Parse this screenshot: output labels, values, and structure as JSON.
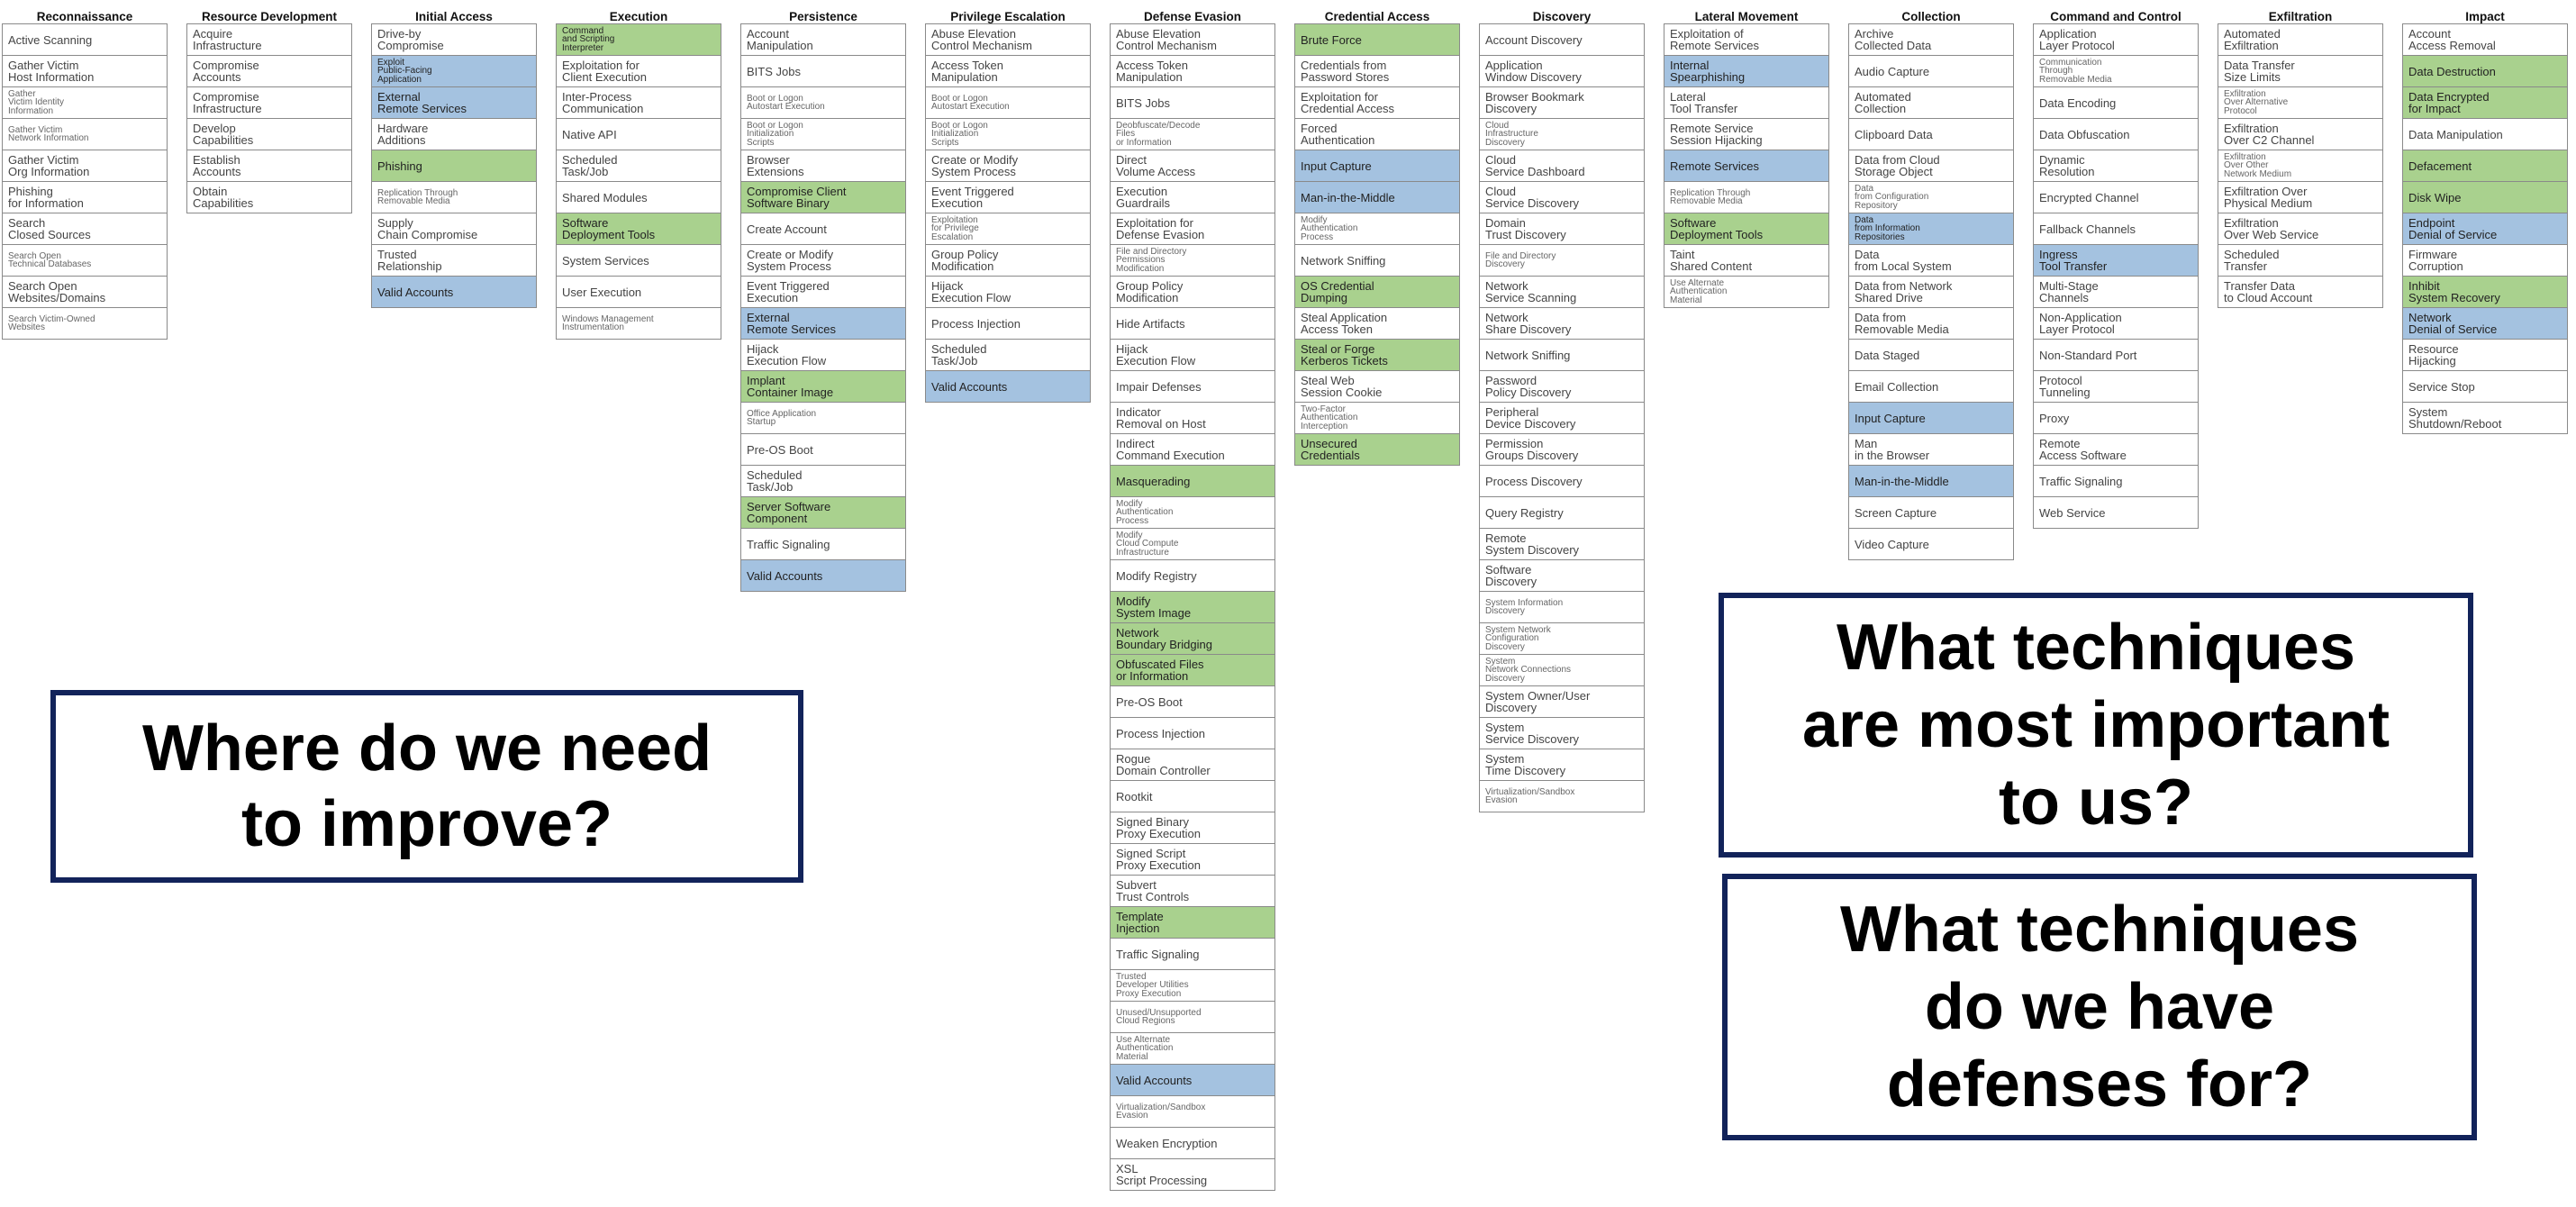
{
  "colors": {
    "green": "#a9d18e",
    "blue": "#a4c2e0",
    "callout_border": "#12235a"
  },
  "legend": {
    "improve": "Where do we need\nto improve?",
    "important": "What techniques\nare most important\nto us?",
    "defenses": "What techniques\ndo we have\ndefenses for?"
  },
  "tactics": [
    {
      "name": "Reconnaissance",
      "techniques": [
        {
          "label": "Active Scanning"
        },
        {
          "label": "Gather Victim\nHost Information"
        },
        {
          "label": "Gather\nVictim Identity\nInformation",
          "small": true
        },
        {
          "label": "Gather Victim\nNetwork Information",
          "small": true
        },
        {
          "label": "Gather Victim\nOrg Information"
        },
        {
          "label": "Phishing\nfor Information"
        },
        {
          "label": "Search\nClosed Sources"
        },
        {
          "label": "Search Open\nTechnical Databases",
          "small": true
        },
        {
          "label": "Search Open\nWebsites/Domains"
        },
        {
          "label": "Search Victim-Owned\nWebsites",
          "small": true
        }
      ]
    },
    {
      "name": "Resource\nDevelopment",
      "techniques": [
        {
          "label": "Acquire\nInfrastructure"
        },
        {
          "label": "Compromise\nAccounts"
        },
        {
          "label": "Compromise\nInfrastructure"
        },
        {
          "label": "Develop\nCapabilities"
        },
        {
          "label": "Establish\nAccounts"
        },
        {
          "label": "Obtain\nCapabilities"
        }
      ]
    },
    {
      "name": "Initial Access",
      "techniques": [
        {
          "label": "Drive-by\nCompromise"
        },
        {
          "label": "Exploit\nPublic-Facing\nApplication",
          "color": "blue",
          "small": true
        },
        {
          "label": "External\nRemote Services",
          "color": "blue"
        },
        {
          "label": "Hardware\nAdditions"
        },
        {
          "label": "Phishing",
          "color": "green"
        },
        {
          "label": "Replication Through\nRemovable Media",
          "small": true
        },
        {
          "label": "Supply\nChain Compromise"
        },
        {
          "label": "Trusted\nRelationship"
        },
        {
          "label": "Valid Accounts",
          "color": "blue"
        }
      ]
    },
    {
      "name": "Execution",
      "techniques": [
        {
          "label": "Command\nand Scripting\nInterpreter",
          "color": "green",
          "small": true
        },
        {
          "label": "Exploitation for\nClient Execution"
        },
        {
          "label": "Inter-Process\nCommunication"
        },
        {
          "label": "Native API"
        },
        {
          "label": "Scheduled\nTask/Job"
        },
        {
          "label": "Shared Modules"
        },
        {
          "label": "Software\nDeployment Tools",
          "color": "green"
        },
        {
          "label": "System Services"
        },
        {
          "label": "User Execution"
        },
        {
          "label": "Windows Management\nInstrumentation",
          "small": true
        }
      ]
    },
    {
      "name": "Persistence",
      "techniques": [
        {
          "label": "Account\nManipulation"
        },
        {
          "label": "BITS Jobs"
        },
        {
          "label": "Boot or Logon\nAutostart Execution",
          "small": true
        },
        {
          "label": "Boot or Logon\nInitialization\nScripts",
          "small": true
        },
        {
          "label": "Browser\nExtensions"
        },
        {
          "label": "Compromise Client\nSoftware Binary",
          "color": "green"
        },
        {
          "label": "Create Account"
        },
        {
          "label": "Create or Modify\nSystem Process"
        },
        {
          "label": "Event Triggered\nExecution"
        },
        {
          "label": "External\nRemote Services",
          "color": "blue"
        },
        {
          "label": "Hijack\nExecution Flow"
        },
        {
          "label": "Implant\nContainer Image",
          "color": "green"
        },
        {
          "label": "Office Application\nStartup",
          "small": true
        },
        {
          "label": "Pre-OS Boot"
        },
        {
          "label": "Scheduled\nTask/Job"
        },
        {
          "label": "Server Software\nComponent",
          "color": "green"
        },
        {
          "label": "Traffic Signaling"
        },
        {
          "label": "Valid Accounts",
          "color": "blue"
        }
      ]
    },
    {
      "name": "Privilege\nEscalation",
      "techniques": [
        {
          "label": "Abuse Elevation\nControl Mechanism"
        },
        {
          "label": "Access Token\nManipulation"
        },
        {
          "label": "Boot or Logon\nAutostart Execution",
          "small": true
        },
        {
          "label": "Boot or Logon\nInitialization\nScripts",
          "small": true
        },
        {
          "label": "Create or Modify\nSystem Process"
        },
        {
          "label": "Event Triggered\nExecution"
        },
        {
          "label": "Exploitation\nfor Privilege\nEscalation",
          "small": true
        },
        {
          "label": "Group Policy\nModification"
        },
        {
          "label": "Hijack\nExecution Flow"
        },
        {
          "label": "Process Injection"
        },
        {
          "label": "Scheduled\nTask/Job"
        },
        {
          "label": "Valid Accounts",
          "color": "blue"
        }
      ]
    },
    {
      "name": "Defense Evasion",
      "techniques": [
        {
          "label": "Abuse Elevation\nControl Mechanism"
        },
        {
          "label": "Access Token\nManipulation"
        },
        {
          "label": "BITS Jobs"
        },
        {
          "label": "Deobfuscate/Decode\nFiles\nor Information",
          "small": true
        },
        {
          "label": "Direct\nVolume Access"
        },
        {
          "label": "Execution\nGuardrails"
        },
        {
          "label": "Exploitation for\nDefense Evasion"
        },
        {
          "label": "File and Directory\nPermissions\nModification",
          "small": true
        },
        {
          "label": "Group Policy\nModification"
        },
        {
          "label": "Hide Artifacts"
        },
        {
          "label": "Hijack\nExecution Flow"
        },
        {
          "label": "Impair Defenses"
        },
        {
          "label": "Indicator\nRemoval on Host"
        },
        {
          "label": "Indirect\nCommand Execution"
        },
        {
          "label": "Masquerading",
          "color": "green"
        },
        {
          "label": "Modify\nAuthentication\nProcess",
          "small": true
        },
        {
          "label": "Modify\nCloud Compute\nInfrastructure",
          "small": true
        },
        {
          "label": "Modify Registry"
        },
        {
          "label": "Modify\nSystem Image",
          "color": "green"
        },
        {
          "label": "Network\nBoundary Bridging",
          "color": "green"
        },
        {
          "label": "Obfuscated Files\nor Information",
          "color": "green"
        },
        {
          "label": "Pre-OS Boot"
        },
        {
          "label": "Process Injection"
        },
        {
          "label": "Rogue\nDomain Controller"
        },
        {
          "label": "Rootkit"
        },
        {
          "label": "Signed Binary\nProxy Execution"
        },
        {
          "label": "Signed Script\nProxy Execution"
        },
        {
          "label": "Subvert\nTrust Controls"
        },
        {
          "label": "Template\nInjection",
          "color": "green"
        },
        {
          "label": "Traffic Signaling"
        },
        {
          "label": "Trusted\nDeveloper Utilities\nProxy Execution",
          "small": true
        },
        {
          "label": "Unused/Unsupported\nCloud Regions",
          "small": true
        },
        {
          "label": "Use Alternate\nAuthentication\nMaterial",
          "small": true
        },
        {
          "label": "Valid Accounts",
          "color": "blue"
        },
        {
          "label": "Virtualization/Sandbox\nEvasion",
          "small": true
        },
        {
          "label": "Weaken Encryption"
        },
        {
          "label": "XSL\nScript Processing"
        }
      ]
    },
    {
      "name": "Credential Access",
      "techniques": [
        {
          "label": "Brute Force",
          "color": "green"
        },
        {
          "label": "Credentials from\nPassword Stores"
        },
        {
          "label": "Exploitation for\nCredential Access"
        },
        {
          "label": "Forced\nAuthentication"
        },
        {
          "label": "Input Capture",
          "color": "blue"
        },
        {
          "label": "Man-in-the-Middle",
          "color": "blue"
        },
        {
          "label": "Modify\nAuthentication\nProcess",
          "small": true
        },
        {
          "label": "Network Sniffing"
        },
        {
          "label": "OS Credential\nDumping",
          "color": "green"
        },
        {
          "label": "Steal Application\nAccess Token"
        },
        {
          "label": "Steal or Forge\nKerberos Tickets",
          "color": "green"
        },
        {
          "label": "Steal Web\nSession Cookie"
        },
        {
          "label": "Two-Factor\nAuthentication\nInterception",
          "small": true
        },
        {
          "label": "Unsecured\nCredentials",
          "color": "green"
        }
      ]
    },
    {
      "name": "Discovery",
      "techniques": [
        {
          "label": "Account Discovery"
        },
        {
          "label": "Application\nWindow Discovery"
        },
        {
          "label": "Browser Bookmark\nDiscovery"
        },
        {
          "label": "Cloud\nInfrastructure\nDiscovery",
          "small": true
        },
        {
          "label": "Cloud\nService Dashboard"
        },
        {
          "label": "Cloud\nService Discovery"
        },
        {
          "label": "Domain\nTrust Discovery"
        },
        {
          "label": "File and Directory\nDiscovery",
          "small": true
        },
        {
          "label": "Network\nService Scanning"
        },
        {
          "label": "Network\nShare Discovery"
        },
        {
          "label": "Network Sniffing"
        },
        {
          "label": "Password\nPolicy Discovery"
        },
        {
          "label": "Peripheral\nDevice Discovery"
        },
        {
          "label": "Permission\nGroups Discovery"
        },
        {
          "label": "Process Discovery"
        },
        {
          "label": "Query Registry"
        },
        {
          "label": "Remote\nSystem Discovery"
        },
        {
          "label": "Software\nDiscovery"
        },
        {
          "label": "System Information\nDiscovery",
          "small": true
        },
        {
          "label": "System Network\nConfiguration\nDiscovery",
          "small": true
        },
        {
          "label": "System\nNetwork Connections\nDiscovery",
          "small": true
        },
        {
          "label": "System Owner/User\nDiscovery"
        },
        {
          "label": "System\nService Discovery"
        },
        {
          "label": "System\nTime Discovery"
        },
        {
          "label": "Virtualization/Sandbox\nEvasion",
          "small": true
        }
      ]
    },
    {
      "name": "Lateral Movement",
      "techniques": [
        {
          "label": "Exploitation of\nRemote Services"
        },
        {
          "label": "Internal\nSpearphishing",
          "color": "blue"
        },
        {
          "label": "Lateral\nTool Transfer"
        },
        {
          "label": "Remote Service\nSession Hijacking"
        },
        {
          "label": "Remote Services",
          "color": "blue"
        },
        {
          "label": "Replication Through\nRemovable Media",
          "small": true
        },
        {
          "label": "Software\nDeployment Tools",
          "color": "green"
        },
        {
          "label": "Taint\nShared Content"
        },
        {
          "label": "Use Alternate\nAuthentication\nMaterial",
          "small": true
        }
      ]
    },
    {
      "name": "Collection",
      "techniques": [
        {
          "label": "Archive\nCollected Data"
        },
        {
          "label": "Audio Capture"
        },
        {
          "label": "Automated\nCollection"
        },
        {
          "label": "Clipboard Data"
        },
        {
          "label": "Data from Cloud\nStorage Object"
        },
        {
          "label": "Data\nfrom Configuration\nRepository",
          "small": true
        },
        {
          "label": "Data\nfrom Information\nRepositories",
          "color": "blue",
          "small": true
        },
        {
          "label": "Data\nfrom Local System"
        },
        {
          "label": "Data from Network\nShared Drive"
        },
        {
          "label": "Data from\nRemovable Media"
        },
        {
          "label": "Data Staged"
        },
        {
          "label": "Email Collection"
        },
        {
          "label": "Input Capture",
          "color": "blue"
        },
        {
          "label": "Man\nin the Browser"
        },
        {
          "label": "Man-in-the-Middle",
          "color": "blue"
        },
        {
          "label": "Screen Capture"
        },
        {
          "label": "Video Capture"
        }
      ]
    },
    {
      "name": "Command\nand Control",
      "techniques": [
        {
          "label": "Application\nLayer Protocol"
        },
        {
          "label": "Communication\nThrough\nRemovable Media",
          "small": true
        },
        {
          "label": "Data Encoding"
        },
        {
          "label": "Data Obfuscation"
        },
        {
          "label": "Dynamic\nResolution"
        },
        {
          "label": "Encrypted Channel"
        },
        {
          "label": "Fallback Channels"
        },
        {
          "label": "Ingress\nTool Transfer",
          "color": "blue"
        },
        {
          "label": "Multi-Stage\nChannels"
        },
        {
          "label": "Non-Application\nLayer Protocol"
        },
        {
          "label": "Non-Standard Port"
        },
        {
          "label": "Protocol\nTunneling"
        },
        {
          "label": "Proxy"
        },
        {
          "label": "Remote\nAccess Software"
        },
        {
          "label": "Traffic Signaling"
        },
        {
          "label": "Web Service"
        }
      ]
    },
    {
      "name": "Exfiltration",
      "techniques": [
        {
          "label": "Automated\nExfiltration"
        },
        {
          "label": "Data Transfer\nSize Limits"
        },
        {
          "label": "Exfiltration\nOver Alternative\nProtocol",
          "small": true
        },
        {
          "label": "Exfiltration\nOver C2 Channel"
        },
        {
          "label": "Exfiltration\nOver Other\nNetwork Medium",
          "small": true
        },
        {
          "label": "Exfiltration Over\nPhysical Medium"
        },
        {
          "label": "Exfiltration\nOver Web Service"
        },
        {
          "label": "Scheduled\nTransfer"
        },
        {
          "label": "Transfer Data\nto Cloud Account"
        }
      ]
    },
    {
      "name": "Impact",
      "techniques": [
        {
          "label": "Account\nAccess Removal"
        },
        {
          "label": "Data Destruction",
          "color": "green"
        },
        {
          "label": "Data Encrypted\nfor Impact",
          "color": "green"
        },
        {
          "label": "Data Manipulation"
        },
        {
          "label": "Defacement",
          "color": "green"
        },
        {
          "label": "Disk Wipe",
          "color": "green"
        },
        {
          "label": "Endpoint\nDenial of Service",
          "color": "blue"
        },
        {
          "label": "Firmware\nCorruption"
        },
        {
          "label": "Inhibit\nSystem Recovery",
          "color": "green"
        },
        {
          "label": "Network\nDenial of Service",
          "color": "blue"
        },
        {
          "label": "Resource\nHijacking"
        },
        {
          "label": "Service Stop"
        },
        {
          "label": "System\nShutdown/Reboot"
        }
      ]
    }
  ]
}
